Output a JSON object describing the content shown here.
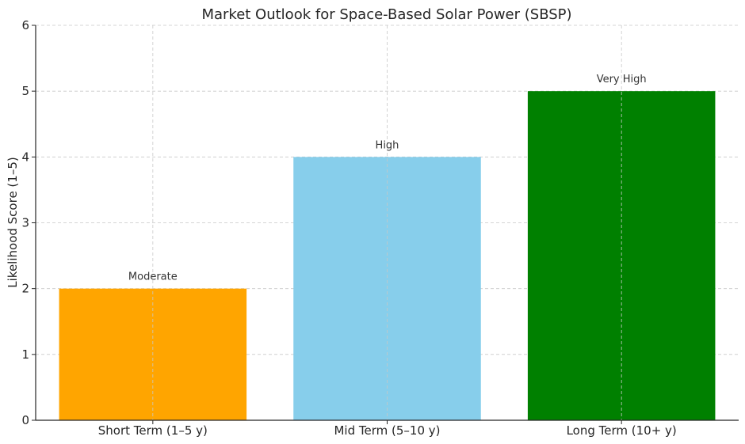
{
  "chart_data": {
    "type": "bar",
    "title": "Market Outlook for Space-Based Solar Power (SBSP)",
    "xlabel": "",
    "ylabel": "Likelihood Score (1–5)",
    "categories": [
      "Short Term (1–5 y)",
      "Mid Term (5–10 y)",
      "Long Term (10+ y)"
    ],
    "values": [
      2,
      4,
      5
    ],
    "data_labels": [
      "Moderate",
      "High",
      "Very High"
    ],
    "colors": [
      "#ffa500",
      "#87ceeb",
      "#008000"
    ],
    "ylim": [
      0,
      6
    ],
    "yticks": [
      0,
      1,
      2,
      3,
      4,
      5,
      6
    ],
    "grid": true
  }
}
